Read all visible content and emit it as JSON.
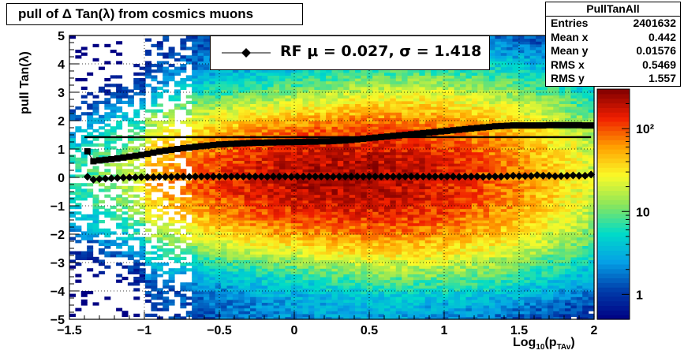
{
  "title": "pull of Δ Tan(λ) from cosmics muons",
  "stats": {
    "name": "PullTanAll",
    "rows": [
      {
        "label": "Entries",
        "value": "2401632"
      },
      {
        "label": "Mean x",
        "value": "0.442"
      },
      {
        "label": "Mean y",
        "value": "0.01576"
      },
      {
        "label": "RMS x",
        "value": "0.5469"
      },
      {
        "label": "RMS y",
        "value": "1.557"
      }
    ]
  },
  "legend": {
    "text": "RF μ =  0.027, σ =   1.418"
  },
  "colors": {
    "markers": "#000000",
    "frame": "#000000"
  },
  "chart_data": {
    "type": "heatmap",
    "title": "pull of Δ Tan(λ) from cosmics muons",
    "xlabel": "Log10(pTAv)",
    "xlabel_main": "Log",
    "xlabel_sub1": "10",
    "xlabel_mid": "(p",
    "xlabel_sub2": "TAv",
    "xlabel_end": ")",
    "ylabel": "pull Tan(λ)",
    "xlim": [
      -1.5,
      2
    ],
    "ylim": [
      -5,
      5
    ],
    "z_scale": "log",
    "zlim": [
      0.5,
      300
    ],
    "x_ticks": [
      "−1.5",
      "−1",
      "−0.5",
      "0",
      "0.5",
      "1",
      "1.5",
      "2"
    ],
    "y_ticks": [
      "−5",
      "−4",
      "−3",
      "−2",
      "−1",
      "0",
      "1",
      "2",
      "3",
      "4",
      "5"
    ],
    "z_ticks": [
      "1",
      "10",
      "10²"
    ],
    "grid": true,
    "legend_position": "top-center",
    "stats_position": "top-right",
    "sigma_line": 1.418,
    "series": [
      {
        "name": "mean",
        "marker": "diamond",
        "x": [
          -1.38,
          -1.34,
          -1.3,
          -1.26,
          -1.22,
          -1.18,
          -1.14,
          -1.1,
          -1.06,
          -1.02,
          -0.98,
          -0.94,
          -0.9,
          -0.86,
          -0.82,
          -0.78,
          -0.74,
          -0.7,
          -0.66,
          -0.62,
          -0.58,
          -0.54,
          -0.5,
          -0.46,
          -0.42,
          -0.38,
          -0.34,
          -0.3,
          -0.26,
          -0.22,
          -0.18,
          -0.14,
          -0.1,
          -0.06,
          -0.02,
          0.02,
          0.06,
          0.1,
          0.14,
          0.18,
          0.22,
          0.26,
          0.3,
          0.34,
          0.38,
          0.42,
          0.46,
          0.5,
          0.54,
          0.58,
          0.62,
          0.66,
          0.7,
          0.74,
          0.78,
          0.82,
          0.86,
          0.9,
          0.94,
          0.98,
          1.02,
          1.06,
          1.1,
          1.14,
          1.18,
          1.22,
          1.26,
          1.3,
          1.34,
          1.38,
          1.42,
          1.46,
          1.5,
          1.54,
          1.58,
          1.62,
          1.66,
          1.7,
          1.74,
          1.78,
          1.82,
          1.86,
          1.9,
          1.94,
          1.98
        ],
        "values": [
          0.02,
          -0.08,
          -0.06,
          -0.04,
          -0.03,
          -0.02,
          -0.01,
          0,
          0,
          0.01,
          0.01,
          0.01,
          0.02,
          0.02,
          0.02,
          0.03,
          0.03,
          0.02,
          0.03,
          0.03,
          0.03,
          0.03,
          0.03,
          0.03,
          0.03,
          0.03,
          0.03,
          0.03,
          0.03,
          0.03,
          0.02,
          0.03,
          0.03,
          0.03,
          0.02,
          0.03,
          0.03,
          0.03,
          0.03,
          0.03,
          0.03,
          0.02,
          0.03,
          0.03,
          0.03,
          0.03,
          0.03,
          0.03,
          0.03,
          0.03,
          0.03,
          0.03,
          0.03,
          0.03,
          0.03,
          0.03,
          0.03,
          0.03,
          0.03,
          0.03,
          0.03,
          0.03,
          0.02,
          0.03,
          0.03,
          0.03,
          0.02,
          0.03,
          0.03,
          0.03,
          0.04,
          0.06,
          0.05,
          0.05,
          0.05,
          0.08,
          0.06,
          0.06,
          0.04,
          0.05,
          0.06,
          0.07,
          0.06,
          0.06,
          0.1
        ]
      },
      {
        "name": "sigma",
        "marker": "square",
        "x": [
          -1.38,
          -1.34,
          -1.3,
          -1.26,
          -1.22,
          -1.18,
          -1.14,
          -1.1,
          -1.06,
          -1.02,
          -0.98,
          -0.94,
          -0.9,
          -0.86,
          -0.82,
          -0.78,
          -0.74,
          -0.7,
          -0.66,
          -0.62,
          -0.58,
          -0.54,
          -0.5,
          -0.46,
          -0.42,
          -0.38,
          -0.34,
          -0.3,
          -0.26,
          -0.22,
          -0.18,
          -0.14,
          -0.1,
          -0.06,
          -0.02,
          0.02,
          0.06,
          0.1,
          0.14,
          0.18,
          0.22,
          0.26,
          0.3,
          0.34,
          0.38,
          0.42,
          0.46,
          0.5,
          0.54,
          0.58,
          0.62,
          0.66,
          0.7,
          0.74,
          0.78,
          0.82,
          0.86,
          0.9,
          0.94,
          0.98,
          1.02,
          1.06,
          1.1,
          1.14,
          1.18,
          1.22,
          1.26,
          1.3,
          1.34,
          1.38,
          1.42,
          1.46,
          1.5,
          1.54,
          1.58,
          1.62,
          1.66,
          1.7,
          1.74,
          1.78,
          1.82,
          1.86,
          1.9,
          1.94,
          1.98
        ],
        "values": [
          0.92,
          0.57,
          0.6,
          0.62,
          0.64,
          0.67,
          0.7,
          0.73,
          0.76,
          0.79,
          0.83,
          0.87,
          0.91,
          0.94,
          0.97,
          1.0,
          1.03,
          1.05,
          1.08,
          1.1,
          1.12,
          1.14,
          1.16,
          1.17,
          1.18,
          1.19,
          1.2,
          1.21,
          1.22,
          1.22,
          1.23,
          1.23,
          1.24,
          1.24,
          1.24,
          1.25,
          1.25,
          1.26,
          1.26,
          1.27,
          1.27,
          1.28,
          1.29,
          1.3,
          1.32,
          1.34,
          1.36,
          1.38,
          1.4,
          1.42,
          1.44,
          1.46,
          1.48,
          1.5,
          1.52,
          1.54,
          1.56,
          1.58,
          1.6,
          1.62,
          1.64,
          1.66,
          1.68,
          1.7,
          1.72,
          1.74,
          1.76,
          1.78,
          1.8,
          1.81,
          1.82,
          1.83,
          1.83,
          1.83,
          1.83,
          1.83,
          1.83,
          1.84,
          1.84,
          1.84,
          1.84,
          1.84,
          1.84,
          1.83,
          1.83
        ]
      }
    ]
  }
}
